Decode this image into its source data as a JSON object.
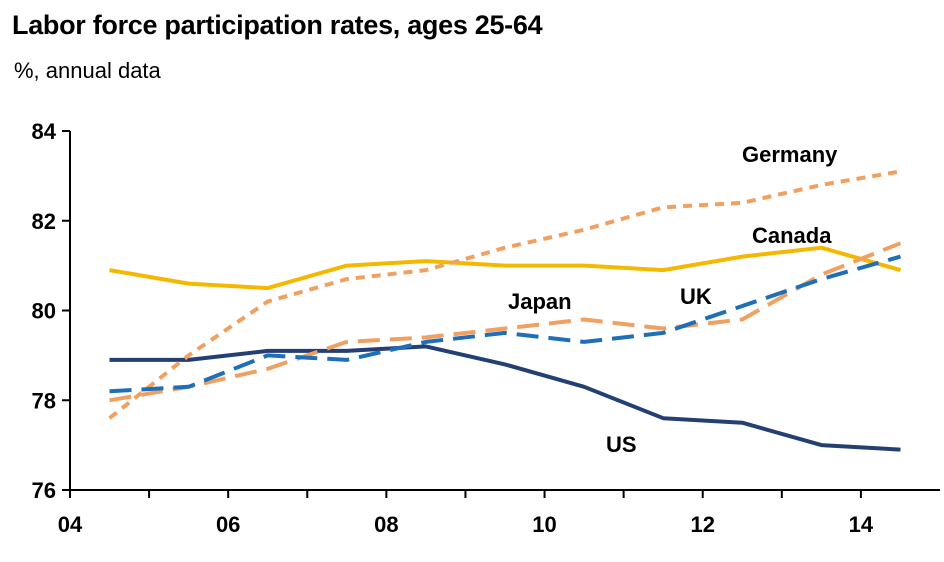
{
  "title": "Labor force participation rates, ages 25-64",
  "subtitle": "%, annual data",
  "chart_data": {
    "type": "line",
    "title": "Labor force participation rates, ages 25-64",
    "subtitle": "%, annual data",
    "xlabel": "",
    "ylabel": "",
    "xlim": [
      2004,
      2015
    ],
    "ylim": [
      76,
      84
    ],
    "x_ticks": [
      {
        "value": 2004,
        "label": "04"
      },
      {
        "value": 2006,
        "label": "06"
      },
      {
        "value": 2008,
        "label": "08"
      },
      {
        "value": 2010,
        "label": "10"
      },
      {
        "value": 2012,
        "label": "12"
      },
      {
        "value": 2014,
        "label": "14"
      }
    ],
    "y_ticks": [
      {
        "value": 76,
        "label": "76"
      },
      {
        "value": 78,
        "label": "78"
      },
      {
        "value": 80,
        "label": "80"
      },
      {
        "value": 82,
        "label": "82"
      },
      {
        "value": 84,
        "label": "84"
      }
    ],
    "grid": false,
    "legend": "inline labels",
    "series": [
      {
        "name": "US",
        "color": "#243f73",
        "dash": "solid",
        "x": [
          2004.5,
          2005.5,
          2006.5,
          2007.5,
          2008.5,
          2009.5,
          2010.5,
          2011.5,
          2012.5,
          2013.5,
          2014.5
        ],
        "values": [
          78.9,
          78.9,
          79.1,
          79.1,
          79.2,
          78.8,
          78.3,
          77.6,
          77.5,
          77.0,
          76.9
        ]
      },
      {
        "name": "Canada",
        "color": "#f5b800",
        "dash": "solid",
        "x": [
          2004.5,
          2005.5,
          2006.5,
          2007.5,
          2008.5,
          2009.5,
          2010.5,
          2011.5,
          2012.5,
          2013.5,
          2014.5
        ],
        "values": [
          80.9,
          80.6,
          80.5,
          81.0,
          81.1,
          81.0,
          81.0,
          80.9,
          81.2,
          81.4,
          80.9
        ]
      },
      {
        "name": "UK",
        "color": "#1f6fb8",
        "dash": "long",
        "x": [
          2004.5,
          2005.5,
          2006.5,
          2007.5,
          2008.5,
          2009.5,
          2010.5,
          2011.5,
          2012.5,
          2013.5,
          2014.5
        ],
        "values": [
          78.2,
          78.3,
          79.0,
          78.9,
          79.3,
          79.5,
          79.3,
          79.5,
          80.1,
          80.7,
          81.2
        ]
      },
      {
        "name": "Japan",
        "color": "#f0a060",
        "dash": "long",
        "x": [
          2004.5,
          2005.5,
          2006.5,
          2007.5,
          2008.5,
          2009.5,
          2010.5,
          2011.5,
          2012.5,
          2013.5,
          2014.5
        ],
        "values": [
          78.0,
          78.3,
          78.7,
          79.3,
          79.4,
          79.6,
          79.8,
          79.6,
          79.8,
          80.8,
          81.5
        ]
      },
      {
        "name": "Germany",
        "color": "#f0a060",
        "dash": "short",
        "x": [
          2004.5,
          2005.5,
          2006.5,
          2007.5,
          2008.5,
          2009.5,
          2010.5,
          2011.5,
          2012.5,
          2013.5,
          2014.5
        ],
        "values": [
          77.6,
          79.0,
          80.2,
          80.7,
          80.9,
          81.4,
          81.8,
          82.3,
          82.4,
          82.8,
          83.1
        ]
      }
    ]
  }
}
